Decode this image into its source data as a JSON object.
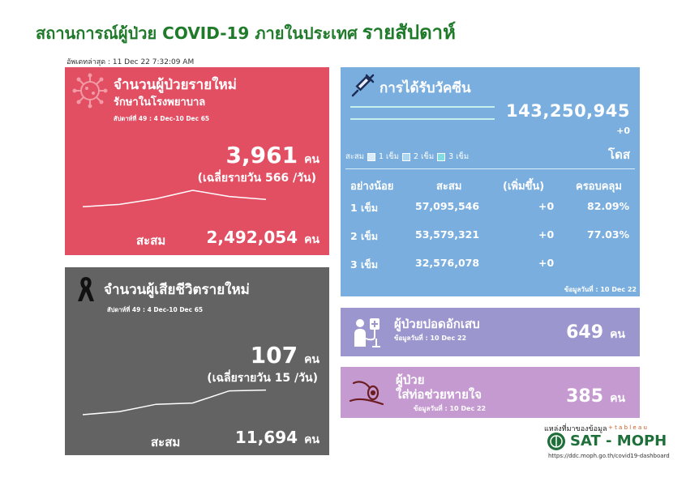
{
  "header": {
    "title": "สถานการณ์ผู้ป่วย COVID-19 ภายในประเทศ",
    "title_highlight": "รายสัปดาห์",
    "updated": "อัพเดทล่าสุด : 11 Dec 22 7:32:09 AM"
  },
  "new_cases": {
    "title": "จำนวนผู้ป่วยรายใหม่",
    "subtitle": "รักษาในโรงพยาบาล",
    "week": "สัปดาห์ที่ 49 : 4 Dec-10 Dec 65",
    "value": "3,961",
    "unit": "คน",
    "daily_avg": "(เฉลี่ยรายวัน 566 /วัน)",
    "cumulative_label": "สะสม",
    "cumulative": "2,492,054",
    "cumulative_unit": "คน",
    "trend": [
      0.1,
      0.2,
      0.45,
      0.82,
      0.55,
      0.42
    ]
  },
  "deaths": {
    "title": "จำนวนผู้เสียชีวิตรายใหม่",
    "week": "สัปดาห์ที่  49 : 4 Dec-10 Dec 65",
    "value": "107",
    "unit": "คน",
    "daily_avg": "(เฉลี่ยรายวัน 15 /วัน)",
    "cumulative_label": "สะสม",
    "cumulative": "11,694",
    "cumulative_unit": "คน",
    "trend": [
      0.0,
      0.12,
      0.4,
      0.45,
      0.92,
      0.95
    ]
  },
  "vaccine": {
    "title": "การได้รับวัคซีน",
    "total": "143,250,945",
    "increase": "+0",
    "unit": "โดส",
    "legend": {
      "label": "สะสม",
      "dose1": "1 เข็ม",
      "dose2": "2 เข็ม",
      "dose3": "3 เข็ม"
    },
    "legend_colors": [
      "#d8ecfb",
      "#a9d6f3",
      "#7fdce0"
    ],
    "columns": [
      "อย่างน้อย",
      "สะสม",
      "(เพิ่มขึ้น)",
      "ครอบคลุม"
    ],
    "rows": [
      {
        "dose": "1 เข็ม",
        "total": "57,095,546",
        "increase": "+0",
        "coverage": "82.09%"
      },
      {
        "dose": "2 เข็ม",
        "total": "53,579,321",
        "increase": "+0",
        "coverage": "77.03%"
      },
      {
        "dose": "3 เข็ม",
        "total": "32,576,078",
        "increase": "+0",
        "coverage": ""
      }
    ],
    "footnote": "ข้อมูลวันที่ : 10 Dec 22"
  },
  "pneumonia": {
    "title": "ผู้ป่วยปอดอักเสบ",
    "date": "ข้อมูลวันที่ : 10 Dec 22",
    "value": "649",
    "unit": "คน"
  },
  "ventilator": {
    "title_line1": "ผู้ป่วย",
    "title_line2": "ใส่ท่อช่วยหายใจ",
    "date": "ข้อมูลวันที่ : 10 Dec 22",
    "value": "385",
    "unit": "คน"
  },
  "source": {
    "label": "แหล่งที่มาของข้อมูล",
    "tableau": "+ t a b l e a u",
    "org": "SAT - MOPH",
    "url": "https://ddc.moph.go.th/covid19-dashboard"
  },
  "colors": {
    "title_green": "#1f7a2a",
    "red_panel": "#e24f63",
    "gray_panel": "#636363",
    "blue_panel": "#79aedf",
    "purple_panel": "#9c96cf",
    "violet_panel": "#c59ad0"
  },
  "icons": [
    "virus-icon",
    "ribbon-icon",
    "syringe-icon",
    "patient-icon",
    "ventilator-icon",
    "moph-logo"
  ]
}
